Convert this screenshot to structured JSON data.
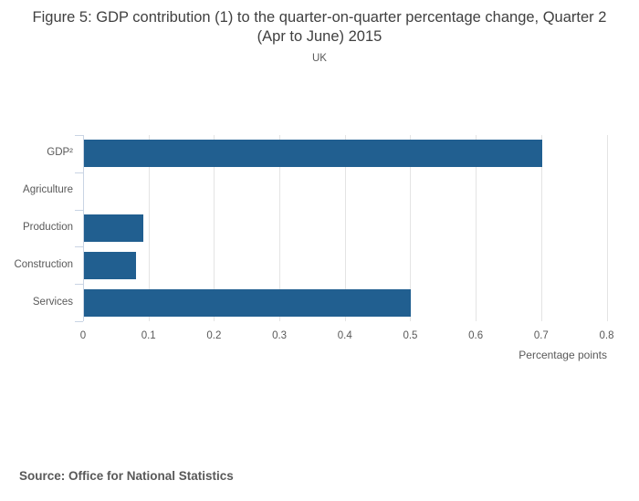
{
  "header": {
    "title": "Figure 5: GDP contribution (1) to the quarter-on-quarter percentage change, Quarter 2 (Apr to June) 2015",
    "subtitle": "UK"
  },
  "chart_data": {
    "type": "bar",
    "orientation": "horizontal",
    "title": "Figure 5: GDP contribution (1) to the quarter-on-quarter percentage change, Quarter 2 (Apr to June) 2015",
    "subtitle": "UK",
    "categories": [
      "GDP²",
      "Agriculture",
      "Production",
      "Construction",
      "Services"
    ],
    "values": [
      0.7,
      0,
      0.09,
      0.08,
      0.5
    ],
    "xlabel": "Percentage points",
    "ylabel": "",
    "xlim": [
      0,
      0.8
    ],
    "xticks": [
      0,
      0.1,
      0.2,
      0.3,
      0.4,
      0.5,
      0.6,
      0.7,
      0.8
    ],
    "xtick_labels": [
      "0",
      "0.1",
      "0.2",
      "0.3",
      "0.4",
      "0.5",
      "0.6",
      "0.7",
      "0.8"
    ],
    "grid": true,
    "legend": false,
    "bar_color": "#215f90",
    "axis_color": "#c9d4e4",
    "grid_color": "#e4e4e4",
    "text_color": "#595959"
  },
  "footer": {
    "source": "Source: Office for National Statistics"
  }
}
